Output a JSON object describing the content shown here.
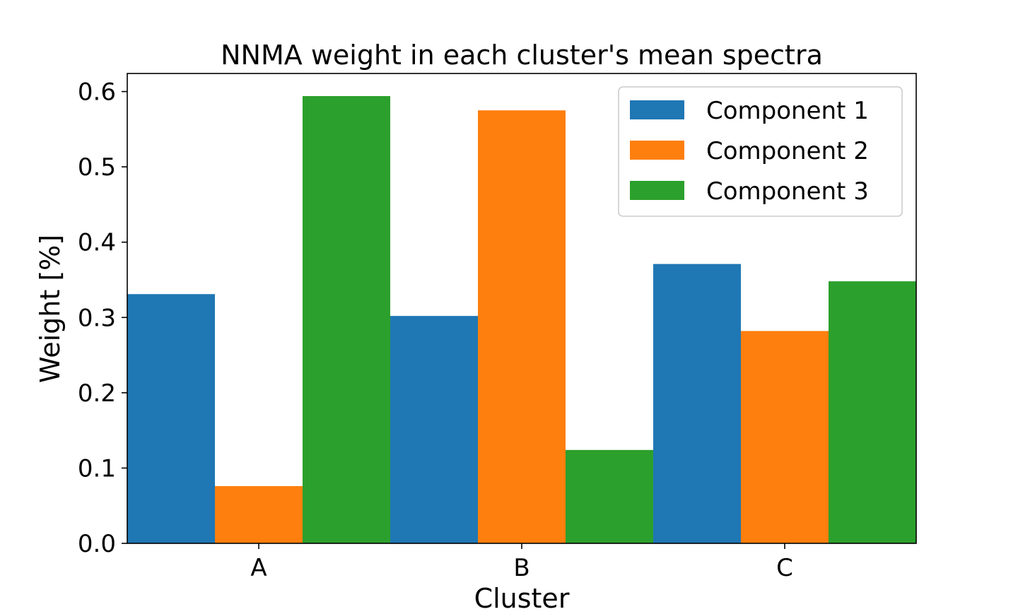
{
  "chart_data": {
    "type": "bar",
    "title": "NNMA weight in each cluster's mean spectra",
    "xlabel": "Cluster",
    "ylabel": "Weight [%]",
    "categories": [
      "A",
      "B",
      "C"
    ],
    "ylim": [
      0,
      0.624
    ],
    "yticks": [
      "0.0",
      "0.1",
      "0.2",
      "0.3",
      "0.4",
      "0.5",
      "0.6"
    ],
    "series": [
      {
        "name": "Component 1",
        "color": "#1f77b4",
        "values": [
          0.331,
          0.302,
          0.371
        ]
      },
      {
        "name": "Component 2",
        "color": "#ff7f0e",
        "values": [
          0.076,
          0.575,
          0.282
        ]
      },
      {
        "name": "Component 3",
        "color": "#2ca02c",
        "values": [
          0.594,
          0.124,
          0.348
        ]
      }
    ],
    "legend_position": "top-right",
    "grid": false
  }
}
